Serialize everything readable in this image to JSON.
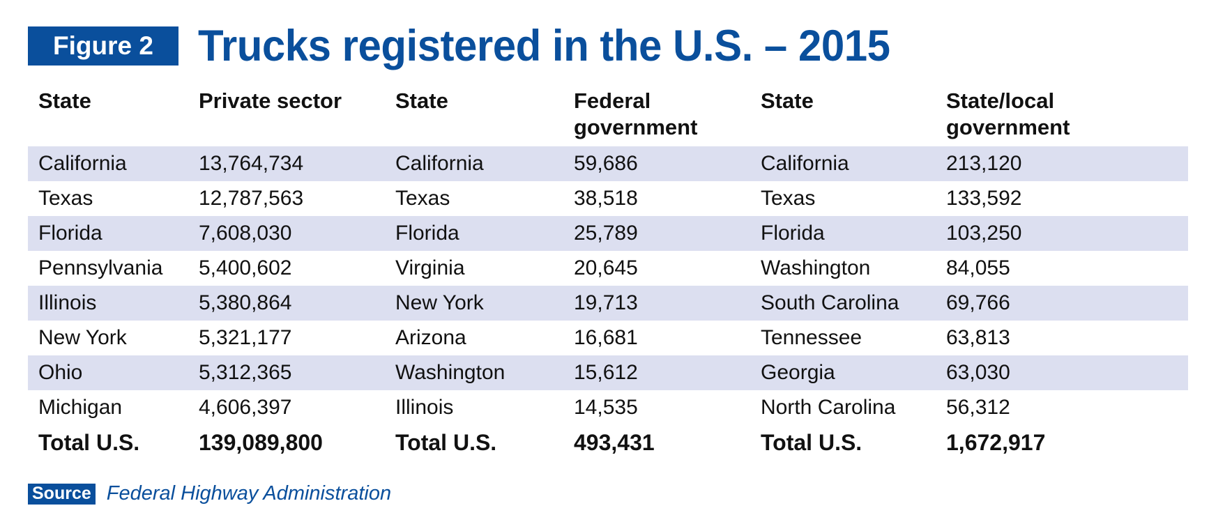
{
  "header": {
    "figure_label": "Figure 2",
    "title": "Trucks registered in the U.S. – 2015"
  },
  "colors": {
    "accent": "#0a4f9c",
    "row_stripe": "#dcdff0",
    "text": "#111111"
  },
  "chart_data": {
    "type": "table",
    "title": "Trucks registered in the U.S. – 2015",
    "columns": [
      "State",
      "Private sector",
      "State",
      "Federal government",
      "State",
      "State/local government"
    ],
    "column_header_lines": [
      [
        "State"
      ],
      [
        "Private sector"
      ],
      [
        "State"
      ],
      [
        "Federal",
        "government"
      ],
      [
        "State"
      ],
      [
        "State/local",
        "government"
      ]
    ],
    "rows": [
      [
        "California",
        "13,764,734",
        "California",
        "59,686",
        "California",
        "213,120"
      ],
      [
        "Texas",
        "12,787,563",
        "Texas",
        "38,518",
        "Texas",
        "133,592"
      ],
      [
        "Florida",
        "7,608,030",
        "Florida",
        "25,789",
        "Florida",
        "103,250"
      ],
      [
        "Pennsylvania",
        "5,400,602",
        "Virginia",
        "20,645",
        "Washington",
        "84,055"
      ],
      [
        "Illinois",
        "5,380,864",
        "New York",
        "19,713",
        "South Carolina",
        "69,766"
      ],
      [
        "New York",
        "5,321,177",
        "Arizona",
        "16,681",
        "Tennessee",
        "63,813"
      ],
      [
        "Ohio",
        "5,312,365",
        "Washington",
        "15,612",
        "Georgia",
        "63,030"
      ],
      [
        "Michigan",
        "4,606,397",
        "Illinois",
        "14,535",
        "North Carolina",
        "56,312"
      ]
    ],
    "total_row": [
      "Total U.S.",
      "139,089,800",
      "Total U.S.",
      "493,431",
      "Total U.S.",
      "1,672,917"
    ]
  },
  "source": {
    "label": "Source",
    "text": "Federal Highway Administration"
  }
}
